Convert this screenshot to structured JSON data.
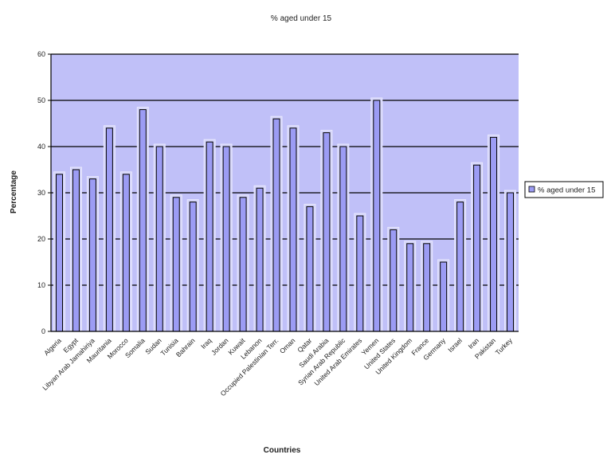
{
  "chart_data": {
    "type": "bar",
    "title": "% aged under 15",
    "xlabel": "Countries",
    "ylabel": "Percentage",
    "ylim": [
      0,
      60
    ],
    "y_ticks": [
      "0",
      "10",
      "20",
      "30",
      "40",
      "50",
      "60"
    ],
    "grid": true,
    "legend_position": "right",
    "categories": [
      "Algeria",
      "Egypt",
      "Libyan Arab Jamahiriya",
      "Mauritania",
      "Morocco",
      "Somalia",
      "Sudan",
      "Tunisia",
      "Bahrain",
      "Iraq",
      "Jordan",
      "Kuwait",
      "Lebanon",
      "Occupied Palestinian Terr.",
      "Oman",
      "Qatar",
      "Saudi Arabia",
      "Syrian Arab Republic",
      "United Arab Emirates",
      "Yemen",
      "United States",
      "United Kingdom",
      "France",
      "Germany",
      "Israel",
      "Iran",
      "Pakistan",
      "Turkey"
    ],
    "series": [
      {
        "name": "% aged under 15",
        "values": [
          34,
          35,
          33,
          44,
          34,
          48,
          40,
          29,
          28,
          41,
          40,
          29,
          31,
          46,
          44,
          27,
          43,
          40,
          25,
          50,
          22,
          19,
          19,
          15,
          28,
          36,
          42,
          30
        ]
      }
    ],
    "colors": {
      "plot_background": "#c0c0f8",
      "bar_fill": "#9c9cf4",
      "bar_stroke": "#000000",
      "gridline": "#000000"
    }
  }
}
